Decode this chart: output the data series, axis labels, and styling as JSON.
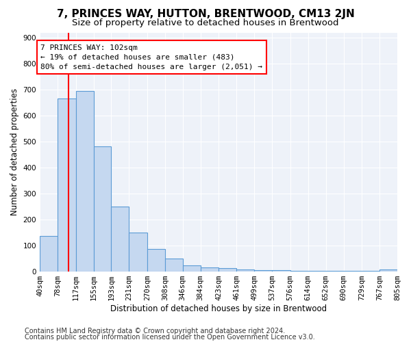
{
  "title": "7, PRINCES WAY, HUTTON, BRENTWOOD, CM13 2JN",
  "subtitle": "Size of property relative to detached houses in Brentwood",
  "xlabel": "Distribution of detached houses by size in Brentwood",
  "ylabel": "Number of detached properties",
  "bar_edges": [
    40,
    78,
    117,
    155,
    193,
    231,
    270,
    308,
    346,
    384,
    423,
    461,
    499,
    537,
    576,
    614,
    652,
    690,
    729,
    767,
    805
  ],
  "bar_heights": [
    135,
    665,
    695,
    480,
    248,
    148,
    85,
    50,
    22,
    15,
    12,
    7,
    4,
    3,
    2,
    1,
    1,
    1,
    1,
    8
  ],
  "bar_color": "#c5d8f0",
  "bar_edge_color": "#5b9bd5",
  "property_line_x": 102,
  "property_line_color": "red",
  "annotation_text": "7 PRINCES WAY: 102sqm\n← 19% of detached houses are smaller (483)\n80% of semi-detached houses are larger (2,051) →",
  "annotation_box_color": "white",
  "annotation_box_edge_color": "red",
  "ylim": [
    0,
    920
  ],
  "yticks": [
    0,
    100,
    200,
    300,
    400,
    500,
    600,
    700,
    800,
    900
  ],
  "footer_line1": "Contains HM Land Registry data © Crown copyright and database right 2024.",
  "footer_line2": "Contains public sector information licensed under the Open Government Licence v3.0.",
  "bg_color": "#eef2f9",
  "grid_color": "white",
  "title_fontsize": 11,
  "subtitle_fontsize": 9.5,
  "axis_label_fontsize": 8.5,
  "tick_fontsize": 7.5,
  "footer_fontsize": 7,
  "annot_fontsize": 8
}
